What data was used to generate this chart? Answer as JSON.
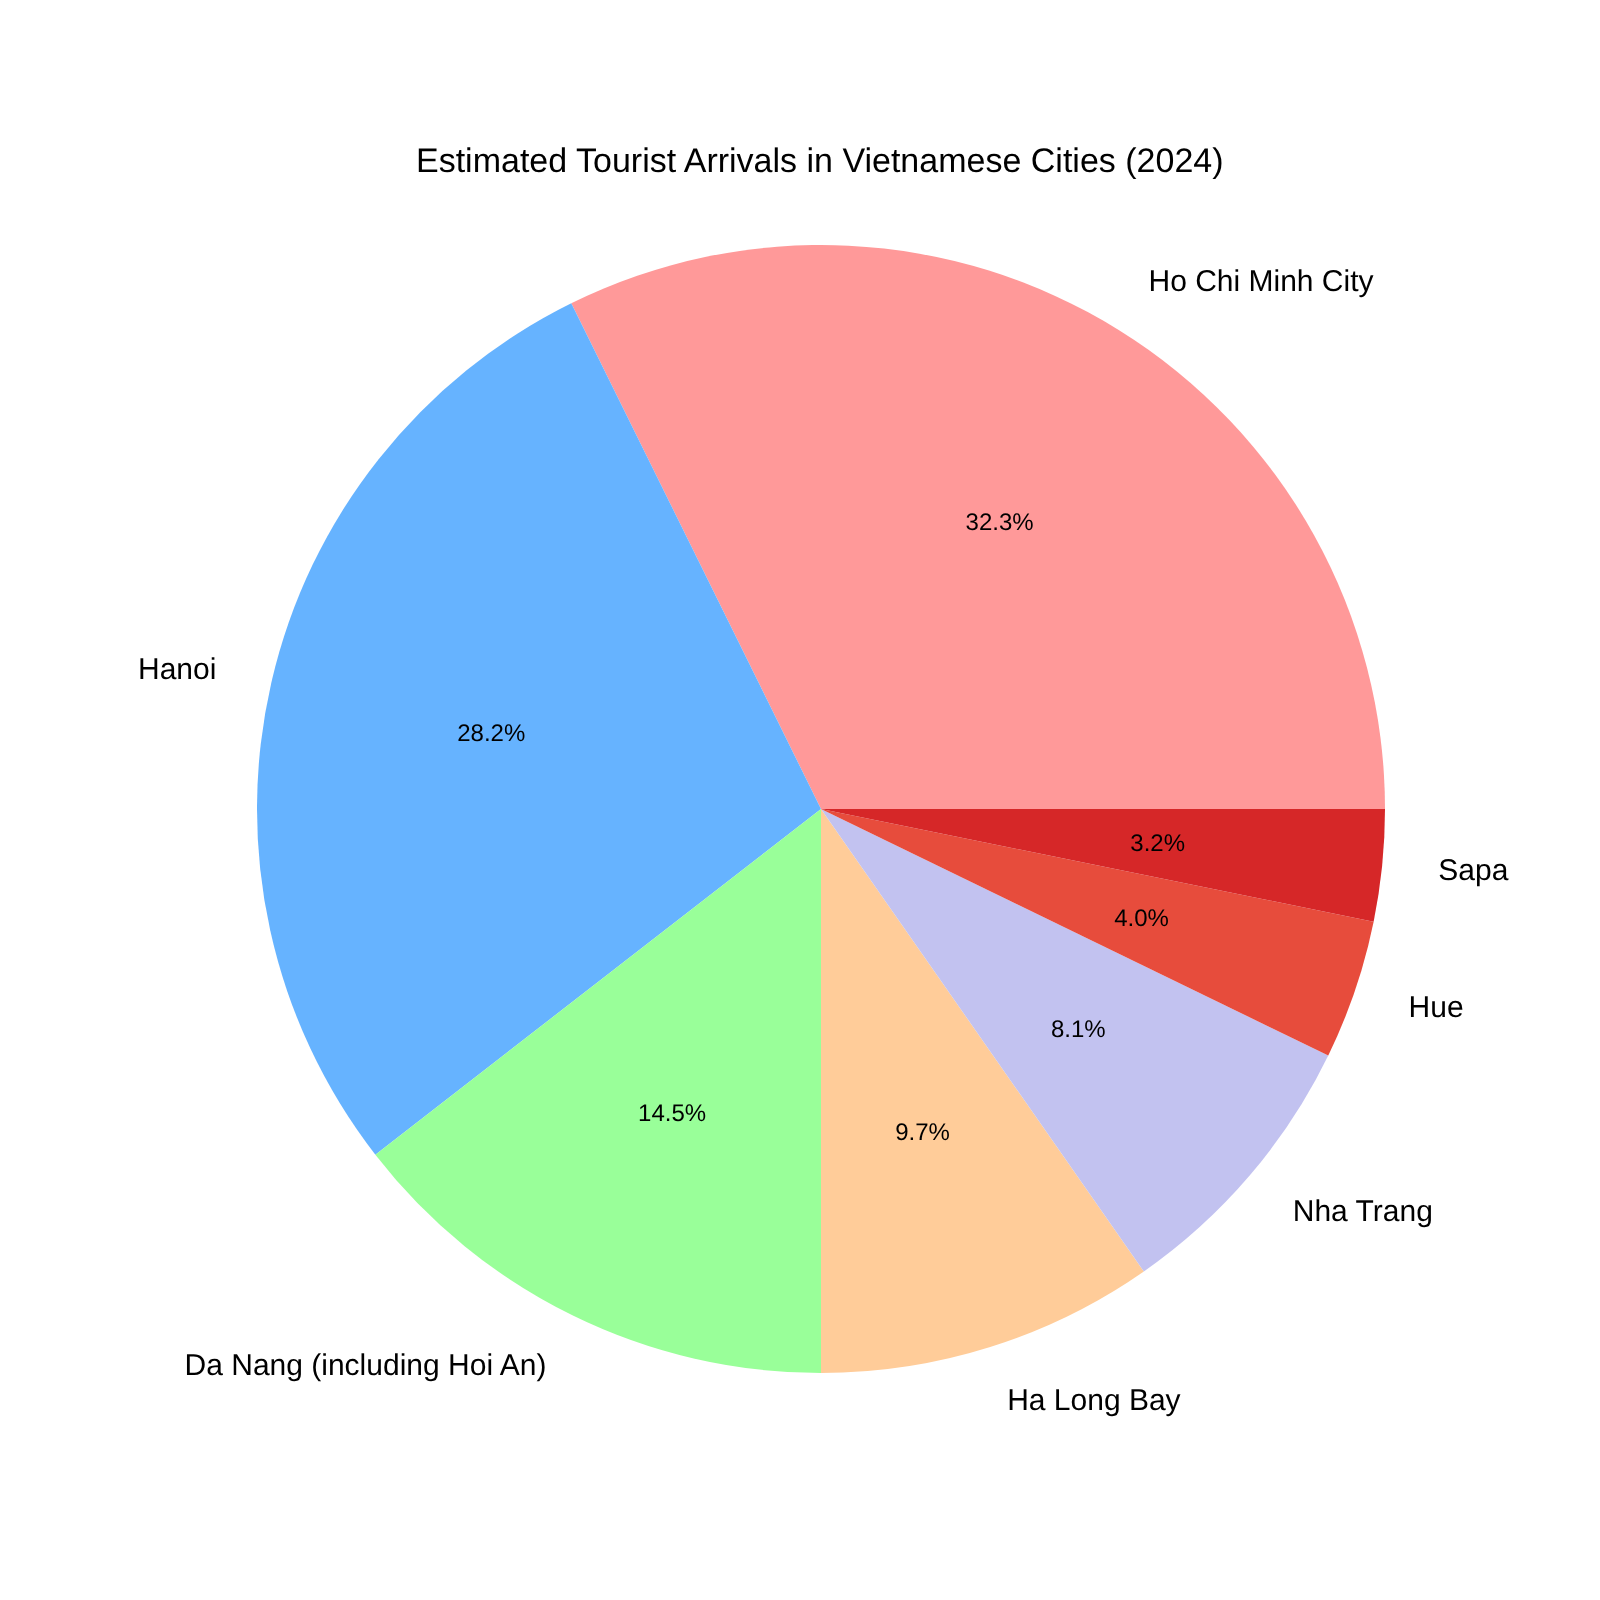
{
  "chart_data": {
    "type": "pie",
    "title": "Estimated Tourist Arrivals in Vietnamese Cities (2024)",
    "categories": [
      "Ho Chi Minh City",
      "Hanoi",
      "Da Nang (including Hoi An)",
      "Ha Long Bay",
      "Nha Trang",
      "Hue",
      "Sapa"
    ],
    "values": [
      32.3,
      28.2,
      14.5,
      9.7,
      8.1,
      4.0,
      3.2
    ],
    "value_labels": [
      "32.3%",
      "28.2%",
      "14.5%",
      "9.7%",
      "8.1%",
      "4.0%",
      "3.2%"
    ],
    "colors": [
      "#ff9999",
      "#66b3ff",
      "#99ff99",
      "#ffcc99",
      "#c2c2f0",
      "#e74c3c",
      "#d62728"
    ]
  }
}
